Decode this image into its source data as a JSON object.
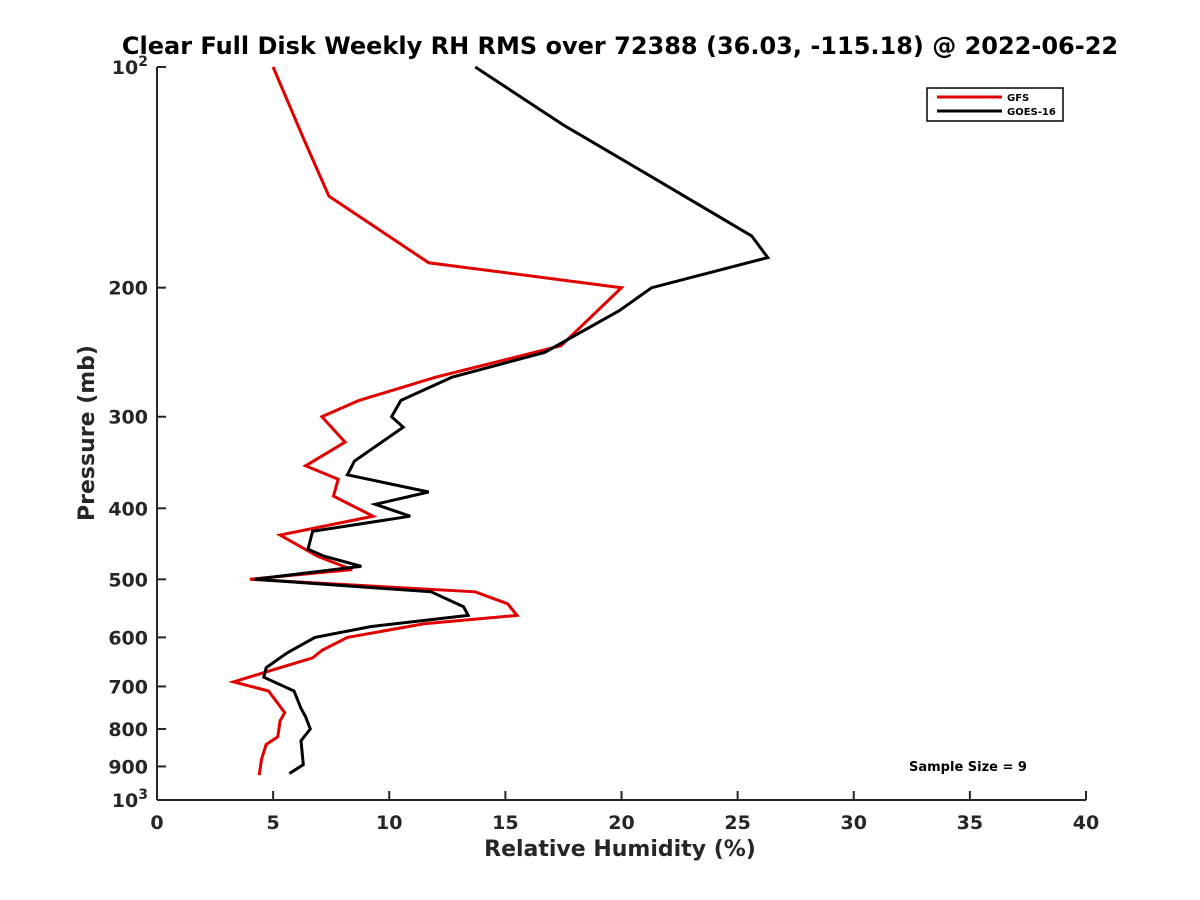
{
  "chart_data": {
    "type": "line",
    "title": "Clear Full Disk Weekly RH RMS over 72388 (36.03, -115.18) @ 2022-06-22",
    "xlabel": "Relative Humidity (%)",
    "ylabel": "Pressure (mb)",
    "xlim": [
      0,
      40
    ],
    "ylim": [
      100,
      1000
    ],
    "yscale": "log",
    "y_reversed": true,
    "x_ticks": [
      0,
      5,
      10,
      15,
      20,
      25,
      30,
      35,
      40
    ],
    "y_ticks": [
      100,
      200,
      300,
      400,
      500,
      600,
      700,
      800,
      900,
      1000
    ],
    "y_tick_labels": [
      {
        "base": "10",
        "exp": "2"
      },
      {
        "base": "200",
        "exp": ""
      },
      {
        "base": "300",
        "exp": ""
      },
      {
        "base": "400",
        "exp": ""
      },
      {
        "base": "500",
        "exp": ""
      },
      {
        "base": "600",
        "exp": ""
      },
      {
        "base": "700",
        "exp": ""
      },
      {
        "base": "800",
        "exp": ""
      },
      {
        "base": "900",
        "exp": ""
      },
      {
        "base": "10",
        "exp": "3"
      }
    ],
    "grid": false,
    "legend_position": "top-right",
    "annotation": "Sample Size = 9",
    "series": [
      {
        "name": "GFS",
        "color": "#e00000",
        "points": [
          [
            5.0,
            100
          ],
          [
            6.3,
            125
          ],
          [
            7.4,
            150
          ],
          [
            11.7,
            185
          ],
          [
            20.0,
            200
          ],
          [
            17.4,
            240
          ],
          [
            12.0,
            265
          ],
          [
            8.7,
            285
          ],
          [
            7.1,
            300
          ],
          [
            8.1,
            325
          ],
          [
            6.4,
            350
          ],
          [
            7.8,
            365
          ],
          [
            7.6,
            385
          ],
          [
            9.3,
            410
          ],
          [
            5.3,
            435
          ],
          [
            6.9,
            465
          ],
          [
            8.4,
            485
          ],
          [
            4.0,
            500
          ],
          [
            13.7,
            520
          ],
          [
            15.1,
            540
          ],
          [
            15.5,
            560
          ],
          [
            11.5,
            575
          ],
          [
            8.2,
            600
          ],
          [
            7.1,
            625
          ],
          [
            6.7,
            640
          ],
          [
            5.3,
            660
          ],
          [
            3.3,
            690
          ],
          [
            4.8,
            710
          ],
          [
            5.5,
            760
          ],
          [
            5.3,
            780
          ],
          [
            5.2,
            820
          ],
          [
            4.7,
            840
          ],
          [
            4.5,
            880
          ],
          [
            4.4,
            925
          ]
        ]
      },
      {
        "name": "GOES-16",
        "color": "#000000",
        "points": [
          [
            13.7,
            100
          ],
          [
            17.5,
            120
          ],
          [
            21.1,
            140
          ],
          [
            25.6,
            170
          ],
          [
            26.3,
            182
          ],
          [
            21.3,
            200
          ],
          [
            19.9,
            215
          ],
          [
            16.7,
            245
          ],
          [
            12.7,
            265
          ],
          [
            10.5,
            285
          ],
          [
            10.1,
            300
          ],
          [
            10.6,
            310
          ],
          [
            8.5,
            345
          ],
          [
            8.2,
            360
          ],
          [
            11.7,
            380
          ],
          [
            9.4,
            395
          ],
          [
            10.9,
            410
          ],
          [
            6.7,
            430
          ],
          [
            6.5,
            455
          ],
          [
            7.2,
            465
          ],
          [
            8.8,
            480
          ],
          [
            4.2,
            500
          ],
          [
            11.8,
            520
          ],
          [
            13.2,
            545
          ],
          [
            13.4,
            560
          ],
          [
            9.2,
            580
          ],
          [
            6.8,
            600
          ],
          [
            5.6,
            630
          ],
          [
            4.7,
            660
          ],
          [
            4.6,
            680
          ],
          [
            5.9,
            710
          ],
          [
            6.2,
            750
          ],
          [
            6.4,
            770
          ],
          [
            6.6,
            800
          ],
          [
            6.2,
            830
          ],
          [
            6.3,
            895
          ],
          [
            5.7,
            920
          ]
        ]
      }
    ]
  }
}
